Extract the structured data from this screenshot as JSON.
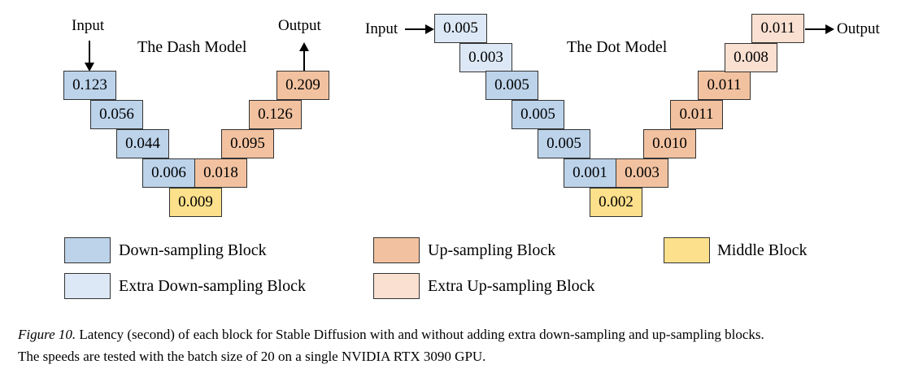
{
  "dash": {
    "title": "The Dash Model",
    "input_label": "Input",
    "output_label": "Output",
    "down": [
      "0.123",
      "0.056",
      "0.044",
      "0.006"
    ],
    "mid": "0.009",
    "up": [
      "0.018",
      "0.095",
      "0.126",
      "0.209"
    ]
  },
  "dot": {
    "title": "The Dot Model",
    "input_label": "Input",
    "output_label": "Output",
    "extra_down": [
      "0.005",
      "0.003"
    ],
    "down": [
      "0.005",
      "0.005",
      "0.005",
      "0.001"
    ],
    "mid": "0.002",
    "up": [
      "0.003",
      "0.010",
      "0.011",
      "0.011"
    ],
    "extra_up": [
      "0.008",
      "0.011"
    ]
  },
  "legend": {
    "down": "Down-sampling Block",
    "up": "Up-sampling Block",
    "mid": "Middle Block",
    "extra_down": "Extra Down-sampling Block",
    "extra_up": "Extra Up-sampling Block"
  },
  "colors": {
    "down": "#bcd3ea",
    "extra_down": "#dce8f5",
    "up": "#f2c2a0",
    "extra_up": "#fae0d1",
    "mid": "#fde08b"
  },
  "caption": {
    "fig": "Figure 10.",
    "line1": " Latency (second) of each block for Stable Diffusion with and without adding extra down-sampling and up-sampling blocks.",
    "line2": "The speeds are tested with the batch size of 20 on a single NVIDIA RTX 3090 GPU."
  }
}
